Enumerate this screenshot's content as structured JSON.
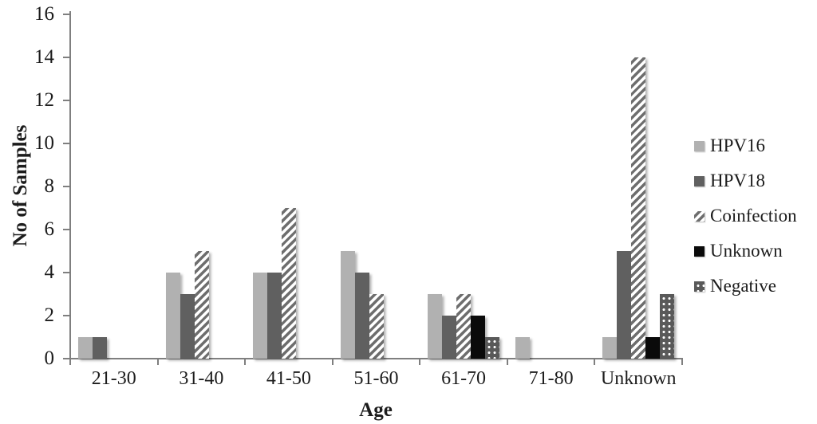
{
  "chart_data": {
    "type": "bar",
    "xlabel": "Age",
    "ylabel": "No of Samples",
    "ylim": [
      0,
      16
    ],
    "yticks": [
      0,
      2,
      4,
      6,
      8,
      10,
      12,
      14,
      16
    ],
    "grid": false,
    "legend_position": "right",
    "categories": [
      "21-30",
      "31-40",
      "41-50",
      "51-60",
      "61-70",
      "71-80",
      "Unknown"
    ],
    "series": [
      {
        "name": "HPV16",
        "key": "hpv16",
        "fill": "solid",
        "color": "#b1b1b1",
        "values": [
          1,
          4,
          4,
          5,
          3,
          1,
          1
        ]
      },
      {
        "name": "HPV18",
        "key": "hpv18",
        "fill": "solid",
        "color": "#606060",
        "values": [
          1,
          3,
          4,
          4,
          2,
          0,
          5
        ]
      },
      {
        "name": "Coinfection",
        "key": "coinfection",
        "fill": "diagonal-stripes",
        "color": "#6e6e6e",
        "values": [
          0,
          5,
          7,
          3,
          3,
          0,
          14
        ]
      },
      {
        "name": "Unknown",
        "key": "unknown",
        "fill": "solid",
        "color": "#0a0a0a",
        "values": [
          0,
          0,
          0,
          0,
          2,
          0,
          1
        ]
      },
      {
        "name": "Negative",
        "key": "negative",
        "fill": "white-dots",
        "color": "#595959",
        "values": [
          0,
          0,
          0,
          0,
          1,
          0,
          3
        ]
      }
    ],
    "colors": {
      "axis": "#7f7f7f",
      "text": "#1c1c1c"
    }
  }
}
